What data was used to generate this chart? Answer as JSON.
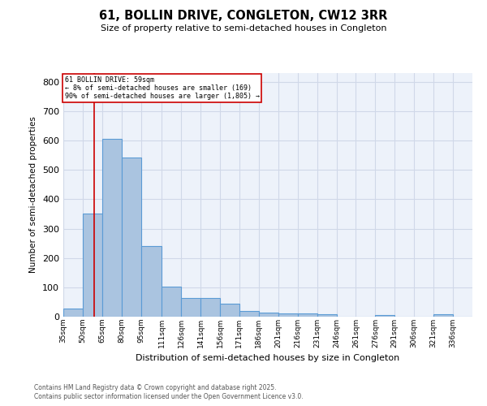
{
  "title": "61, BOLLIN DRIVE, CONGLETON, CW12 3RR",
  "subtitle": "Size of property relative to semi-detached houses in Congleton",
  "xlabel": "Distribution of semi-detached houses by size in Congleton",
  "ylabel": "Number of semi-detached properties",
  "bin_labels": [
    "35sqm",
    "50sqm",
    "65sqm",
    "80sqm",
    "95sqm",
    "111sqm",
    "126sqm",
    "141sqm",
    "156sqm",
    "171sqm",
    "186sqm",
    "201sqm",
    "216sqm",
    "231sqm",
    "246sqm",
    "261sqm",
    "276sqm",
    "291sqm",
    "306sqm",
    "321sqm",
    "336sqm"
  ],
  "bin_edges": [
    35,
    50,
    65,
    80,
    95,
    111,
    126,
    141,
    156,
    171,
    186,
    201,
    216,
    231,
    246,
    261,
    276,
    291,
    306,
    321,
    336,
    351
  ],
  "bar_heights": [
    28,
    350,
    607,
    542,
    240,
    103,
    65,
    65,
    45,
    18,
    15,
    10,
    10,
    8,
    0,
    0,
    5,
    0,
    0,
    8,
    0
  ],
  "bar_color": "#aac4e0",
  "bar_edgecolor": "#5b9bd5",
  "vline_x": 59,
  "vline_color": "#cc0000",
  "annotation_line1": "61 BOLLIN DRIVE: 59sqm",
  "annotation_line2": "← 8% of semi-detached houses are smaller (169)",
  "annotation_line3": "90% of semi-detached houses are larger (1,805) →",
  "ylim": [
    0,
    830
  ],
  "grid_color": "#d0d8e8",
  "bg_color": "#edf2fa",
  "footer_line1": "Contains HM Land Registry data © Crown copyright and database right 2025.",
  "footer_line2": "Contains public sector information licensed under the Open Government Licence v3.0."
}
